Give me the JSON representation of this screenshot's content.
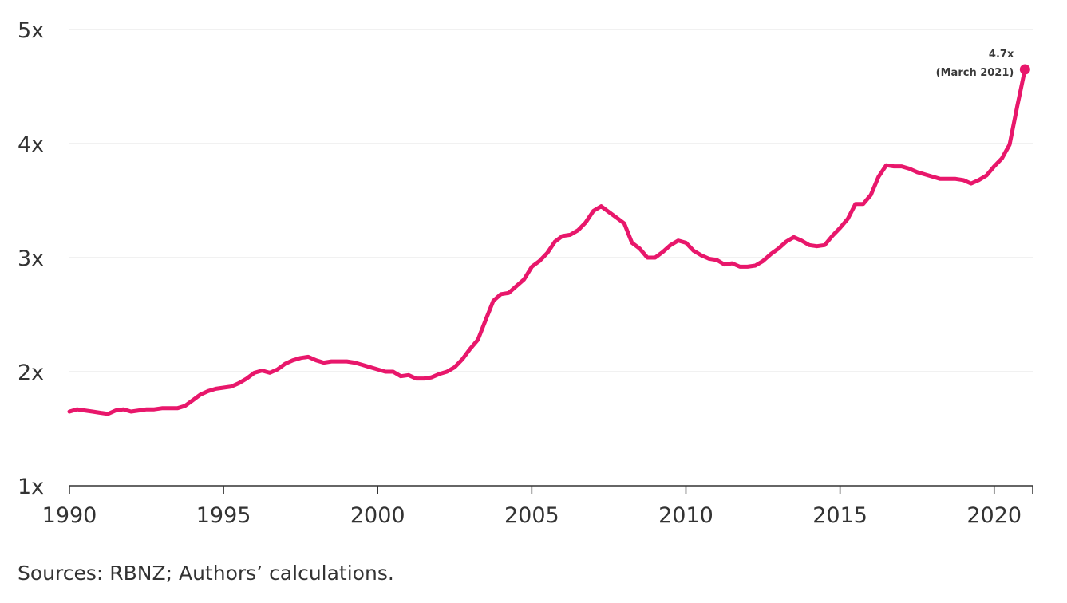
{
  "chart_data": {
    "type": "line",
    "title": "",
    "xlabel": "",
    "ylabel": "",
    "xlim": [
      1990,
      2021.25
    ],
    "ylim": [
      1,
      5
    ],
    "grid": true,
    "line_color": "#e8176b",
    "y_ticks": [
      {
        "value": 1,
        "label": "1x"
      },
      {
        "value": 2,
        "label": "2x"
      },
      {
        "value": 3,
        "label": "3x"
      },
      {
        "value": 4,
        "label": "4x"
      },
      {
        "value": 5,
        "label": "5x"
      }
    ],
    "x_ticks": [
      {
        "value": 1990,
        "label": "1990"
      },
      {
        "value": 1995,
        "label": "1995"
      },
      {
        "value": 2000,
        "label": "2000"
      },
      {
        "value": 2005,
        "label": "2005"
      },
      {
        "value": 2010,
        "label": "2010"
      },
      {
        "value": 2015,
        "label": "2015"
      },
      {
        "value": 2020,
        "label": "2020"
      }
    ],
    "series": [
      {
        "points": [
          [
            1990.0,
            1.65
          ],
          [
            1990.25,
            1.67
          ],
          [
            1990.5,
            1.66
          ],
          [
            1990.75,
            1.65
          ],
          [
            1991.0,
            1.64
          ],
          [
            1991.25,
            1.63
          ],
          [
            1991.5,
            1.66
          ],
          [
            1991.75,
            1.67
          ],
          [
            1992.0,
            1.65
          ],
          [
            1992.25,
            1.66
          ],
          [
            1992.5,
            1.67
          ],
          [
            1992.75,
            1.67
          ],
          [
            1993.0,
            1.68
          ],
          [
            1993.25,
            1.68
          ],
          [
            1993.5,
            1.68
          ],
          [
            1993.75,
            1.7
          ],
          [
            1994.0,
            1.75
          ],
          [
            1994.25,
            1.8
          ],
          [
            1994.5,
            1.83
          ],
          [
            1994.75,
            1.85
          ],
          [
            1995.0,
            1.86
          ],
          [
            1995.25,
            1.87
          ],
          [
            1995.5,
            1.9
          ],
          [
            1995.75,
            1.94
          ],
          [
            1996.0,
            1.99
          ],
          [
            1996.25,
            2.01
          ],
          [
            1996.5,
            1.99
          ],
          [
            1996.75,
            2.02
          ],
          [
            1997.0,
            2.07
          ],
          [
            1997.25,
            2.1
          ],
          [
            1997.5,
            2.12
          ],
          [
            1997.75,
            2.13
          ],
          [
            1998.0,
            2.1
          ],
          [
            1998.25,
            2.08
          ],
          [
            1998.5,
            2.09
          ],
          [
            1998.75,
            2.09
          ],
          [
            1999.0,
            2.09
          ],
          [
            1999.25,
            2.08
          ],
          [
            1999.5,
            2.06
          ],
          [
            1999.75,
            2.04
          ],
          [
            2000.0,
            2.02
          ],
          [
            2000.25,
            2.0
          ],
          [
            2000.5,
            2.0
          ],
          [
            2000.75,
            1.96
          ],
          [
            2001.0,
            1.97
          ],
          [
            2001.25,
            1.94
          ],
          [
            2001.5,
            1.94
          ],
          [
            2001.75,
            1.95
          ],
          [
            2002.0,
            1.98
          ],
          [
            2002.25,
            2.0
          ],
          [
            2002.5,
            2.04
          ],
          [
            2002.75,
            2.11
          ],
          [
            2003.0,
            2.2
          ],
          [
            2003.25,
            2.28
          ],
          [
            2003.5,
            2.45
          ],
          [
            2003.75,
            2.62
          ],
          [
            2004.0,
            2.68
          ],
          [
            2004.25,
            2.69
          ],
          [
            2004.5,
            2.75
          ],
          [
            2004.75,
            2.81
          ],
          [
            2005.0,
            2.92
          ],
          [
            2005.25,
            2.97
          ],
          [
            2005.5,
            3.04
          ],
          [
            2005.75,
            3.14
          ],
          [
            2006.0,
            3.19
          ],
          [
            2006.25,
            3.2
          ],
          [
            2006.5,
            3.24
          ],
          [
            2006.75,
            3.31
          ],
          [
            2007.0,
            3.41
          ],
          [
            2007.25,
            3.45
          ],
          [
            2007.5,
            3.4
          ],
          [
            2007.75,
            3.35
          ],
          [
            2008.0,
            3.3
          ],
          [
            2008.25,
            3.13
          ],
          [
            2008.5,
            3.08
          ],
          [
            2008.75,
            3.0
          ],
          [
            2009.0,
            3.0
          ],
          [
            2009.25,
            3.05
          ],
          [
            2009.5,
            3.11
          ],
          [
            2009.75,
            3.15
          ],
          [
            2010.0,
            3.13
          ],
          [
            2010.25,
            3.06
          ],
          [
            2010.5,
            3.02
          ],
          [
            2010.75,
            2.99
          ],
          [
            2011.0,
            2.98
          ],
          [
            2011.25,
            2.94
          ],
          [
            2011.5,
            2.95
          ],
          [
            2011.75,
            2.92
          ],
          [
            2012.0,
            2.92
          ],
          [
            2012.25,
            2.93
          ],
          [
            2012.5,
            2.97
          ],
          [
            2012.75,
            3.03
          ],
          [
            2013.0,
            3.08
          ],
          [
            2013.25,
            3.14
          ],
          [
            2013.5,
            3.18
          ],
          [
            2013.75,
            3.15
          ],
          [
            2014.0,
            3.11
          ],
          [
            2014.25,
            3.1
          ],
          [
            2014.5,
            3.11
          ],
          [
            2014.75,
            3.19
          ],
          [
            2015.0,
            3.26
          ],
          [
            2015.25,
            3.34
          ],
          [
            2015.5,
            3.47
          ],
          [
            2015.75,
            3.47
          ],
          [
            2016.0,
            3.55
          ],
          [
            2016.25,
            3.71
          ],
          [
            2016.5,
            3.81
          ],
          [
            2016.75,
            3.8
          ],
          [
            2017.0,
            3.8
          ],
          [
            2017.25,
            3.78
          ],
          [
            2017.5,
            3.75
          ],
          [
            2017.75,
            3.73
          ],
          [
            2018.0,
            3.71
          ],
          [
            2018.25,
            3.69
          ],
          [
            2018.5,
            3.69
          ],
          [
            2018.75,
            3.69
          ],
          [
            2019.0,
            3.68
          ],
          [
            2019.25,
            3.65
          ],
          [
            2019.5,
            3.68
          ],
          [
            2019.75,
            3.72
          ],
          [
            2020.0,
            3.8
          ],
          [
            2020.25,
            3.87
          ],
          [
            2020.5,
            3.99
          ],
          [
            2020.75,
            4.33
          ],
          [
            2021.0,
            4.65
          ]
        ]
      }
    ],
    "annotation": {
      "x": 2021.0,
      "y": 4.65,
      "line1": "4.7x",
      "line2": "(March 2021)"
    }
  },
  "footer": {
    "source": "Sources: RBNZ; Authors’ calculations."
  }
}
